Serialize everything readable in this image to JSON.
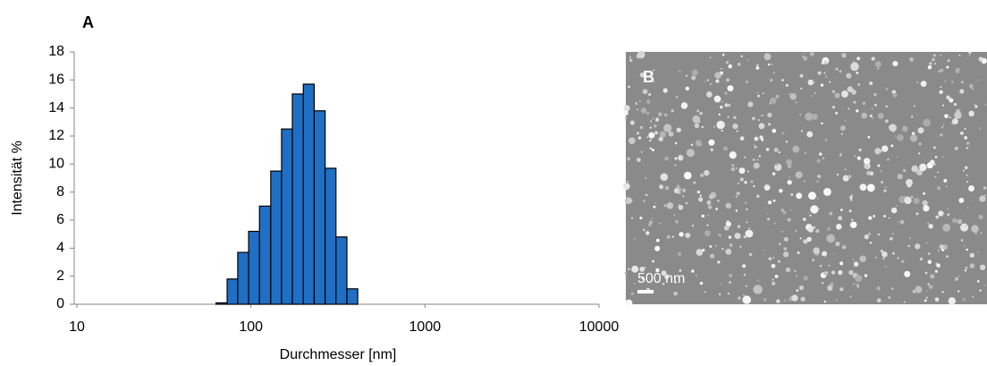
{
  "chart_data": {
    "type": "histogram",
    "panel_label": "A",
    "y_label": "Intensität %",
    "x_label": "Durchmesser [nm]",
    "bins": [
      63,
      73,
      84,
      97,
      112,
      130,
      150,
      173,
      200,
      231,
      267,
      308,
      356,
      411
    ],
    "values": [
      0.1,
      1.8,
      3.7,
      5.2,
      7.0,
      9.5,
      12.5,
      15.0,
      15.7,
      13.8,
      9.7,
      4.8,
      1.1
    ],
    "color": "#1f6fc5",
    "edge_color": "#000000",
    "x_scale": "log",
    "xlim": [
      10,
      10000
    ],
    "xticks": [
      10,
      100,
      1000,
      10000
    ],
    "ylim": [
      0,
      18
    ],
    "yticks": [
      0,
      2,
      4,
      6,
      8,
      10,
      12,
      14,
      16,
      18
    ],
    "grid": false
  },
  "image_panel": {
    "label": "B",
    "scale_bar": "500 nm"
  }
}
